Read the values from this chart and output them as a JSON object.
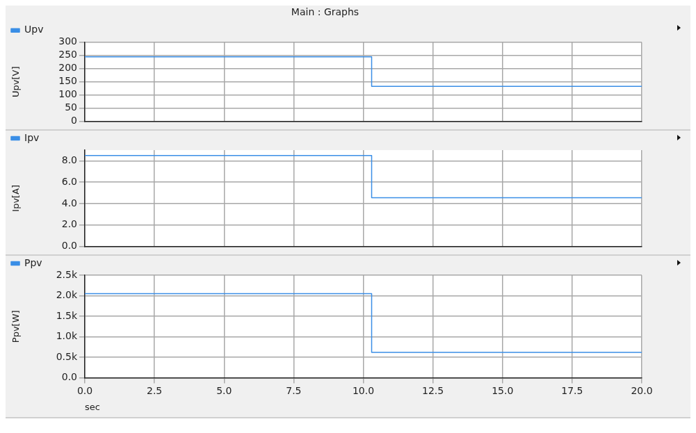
{
  "chart_data": [
    {
      "type": "step",
      "title": "Main : Graphs",
      "ylabel": "Upv[V]",
      "x": [
        0,
        10.3,
        20
      ],
      "xlim": [
        0,
        20
      ],
      "xticks": [
        {
          "value": 0,
          "label": null
        },
        {
          "value": 2.5,
          "label": null
        },
        {
          "value": 5,
          "label": null
        },
        {
          "value": 7.5,
          "label": null
        },
        {
          "value": 10,
          "label": null
        },
        {
          "value": 12.5,
          "label": null
        },
        {
          "value": 15,
          "label": null
        },
        {
          "value": 17.5,
          "label": null
        },
        {
          "value": 20,
          "label": null
        }
      ],
      "ylim": [
        0,
        300
      ],
      "yticks": [
        0,
        50,
        100,
        150,
        200,
        250,
        300
      ],
      "tick_labels": "y",
      "grid": true,
      "legend": "top left",
      "series": [
        {
          "name": "Upv",
          "color": "#3a8ee6",
          "values": [
            245,
            133,
            133
          ]
        }
      ]
    },
    {
      "type": "step",
      "ylabel": "Ipv[A]",
      "x": [
        0,
        10.3,
        20
      ],
      "xlim": [
        0,
        20
      ],
      "xticks": [
        {
          "value": 0,
          "label": null
        },
        {
          "value": 2.5,
          "label": null
        },
        {
          "value": 5,
          "label": null
        },
        {
          "value": 7.5,
          "label": null
        },
        {
          "value": 10,
          "label": null
        },
        {
          "value": 12.5,
          "label": null
        },
        {
          "value": 15,
          "label": null
        },
        {
          "value": 17.5,
          "label": null
        },
        {
          "value": 20,
          "label": null
        }
      ],
      "ylim": [
        0,
        9
      ],
      "yticks": [
        {
          "value": 0,
          "label": "0.0"
        },
        {
          "value": 2,
          "label": "2.0"
        },
        {
          "value": 4,
          "label": "4.0"
        },
        {
          "value": 6,
          "label": "6.0"
        },
        {
          "value": 8,
          "label": "8.0"
        }
      ],
      "tick_labels": "y",
      "grid": true,
      "legend": "top left",
      "series": [
        {
          "name": "Ipv",
          "color": "#3a8ee6",
          "values": [
            8.5,
            4.55,
            4.55
          ]
        }
      ]
    },
    {
      "type": "step",
      "xlabel": "sec",
      "ylabel": "Ppv[W]",
      "x": [
        0,
        10.3,
        20
      ],
      "xlim": [
        0,
        20
      ],
      "xticks": [
        {
          "value": 0,
          "label": "0.0"
        },
        {
          "value": 2.5,
          "label": "2.5"
        },
        {
          "value": 5,
          "label": "5.0"
        },
        {
          "value": 7.5,
          "label": "7.5"
        },
        {
          "value": 10,
          "label": "10.0"
        },
        {
          "value": 12.5,
          "label": "12.5"
        },
        {
          "value": 15,
          "label": "15.0"
        },
        {
          "value": 17.5,
          "label": "17.5"
        },
        {
          "value": 20,
          "label": "20.0"
        }
      ],
      "ylim": [
        0,
        2500
      ],
      "yticks": [
        {
          "value": 0,
          "label": "0.0"
        },
        {
          "value": 500,
          "label": "0.5k"
        },
        {
          "value": 1000,
          "label": "1.0k"
        },
        {
          "value": 1500,
          "label": "1.5k"
        },
        {
          "value": 2000,
          "label": "2.0k"
        },
        {
          "value": 2500,
          "label": "2.5k"
        }
      ],
      "grid": true,
      "legend": "top left",
      "series": [
        {
          "name": "Ppv",
          "color": "#3a8ee6",
          "values": [
            2050,
            620,
            620
          ]
        }
      ]
    }
  ]
}
